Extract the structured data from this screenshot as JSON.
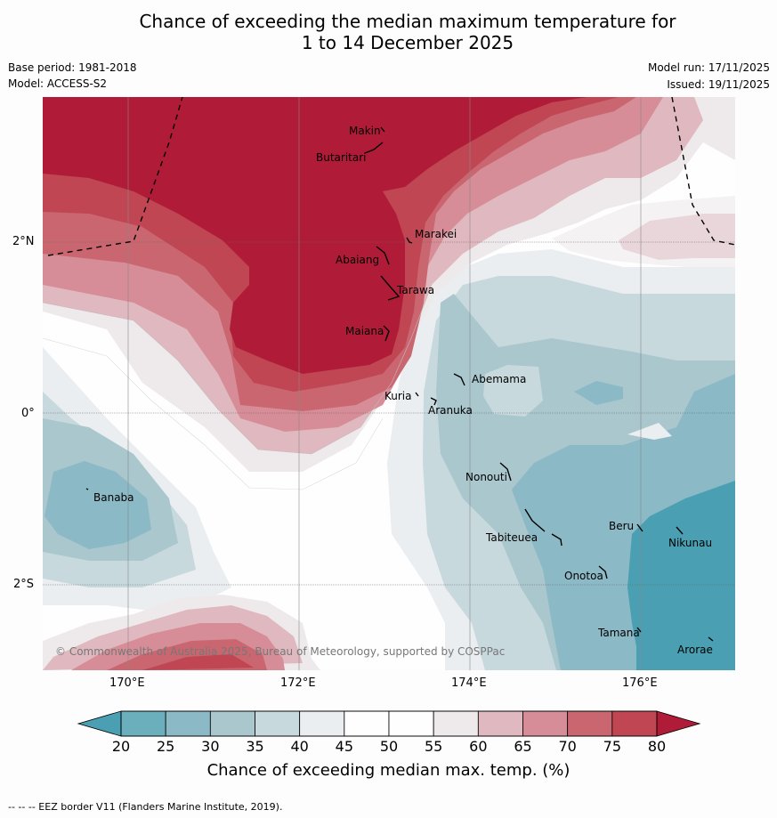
{
  "title": {
    "line1": "Chance of exceeding the median maximum temperature for",
    "line2": "1 to 14 December 2025"
  },
  "meta": {
    "base_period": "Base period: 1981-2018",
    "model": "Model: ACCESS-S2",
    "model_run": "Model run: 17/11/2025",
    "issued": "Issued: 19/11/2025"
  },
  "map": {
    "lat_labels": [
      "2°N",
      "0°",
      "2°S"
    ],
    "lon_labels": [
      "170°E",
      "172°E",
      "174°E",
      "176°E"
    ],
    "places": [
      {
        "name": "Makin"
      },
      {
        "name": "Butaritari"
      },
      {
        "name": "Marakei"
      },
      {
        "name": "Abaiang"
      },
      {
        "name": "Tarawa"
      },
      {
        "name": "Maiana"
      },
      {
        "name": "Abemama"
      },
      {
        "name": "Kuria"
      },
      {
        "name": "Aranuka"
      },
      {
        "name": "Banaba"
      },
      {
        "name": "Nonouti"
      },
      {
        "name": "Beru"
      },
      {
        "name": "Nikunau"
      },
      {
        "name": "Tabiteuea"
      },
      {
        "name": "Onotoa"
      },
      {
        "name": "Tamana"
      },
      {
        "name": "Arorae"
      }
    ],
    "copyright": "© Commonwealth of Australia 2025, Bureau of Meteorology, supported by COSPPac"
  },
  "colorbar": {
    "ticks": [
      "20",
      "25",
      "30",
      "35",
      "40",
      "45",
      "50",
      "55",
      "60",
      "65",
      "70",
      "75",
      "80"
    ],
    "colors": [
      "#4aa0b2",
      "#6baebc",
      "#8cb9c6",
      "#a9c7cd",
      "#c8d9de",
      "#eaeef1",
      "#fefefe",
      "#fefefe",
      "#eeeaec",
      "#e0b8bf",
      "#d68d97",
      "#c96670",
      "#c04654",
      "#b01c37"
    ],
    "label": "Chance of exceeding median max. temp. (%)"
  },
  "footnote": "--  --  -- EEZ border V11 (Flanders Marine Institute, 2019)."
}
